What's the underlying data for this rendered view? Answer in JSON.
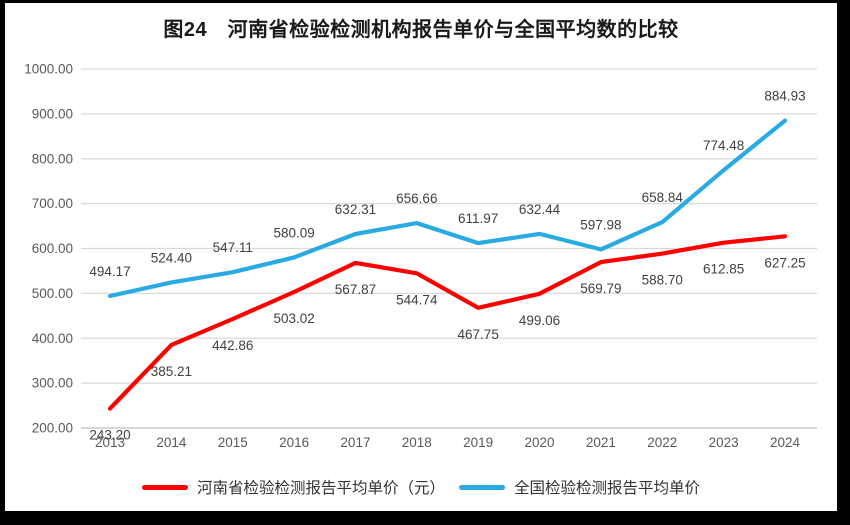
{
  "frame": {
    "background_color": "#000000",
    "canvas_color": "#ffffff"
  },
  "chart_data": {
    "type": "line",
    "title": "图24　河南省检验检测机构报告单价与全国平均数的比较",
    "categories": [
      "2013",
      "2014",
      "2015",
      "2016",
      "2017",
      "2018",
      "2019",
      "2020",
      "2021",
      "2022",
      "2023",
      "2024"
    ],
    "series": [
      {
        "name": "河南省检验检测报告平均单价（元）",
        "color": "#ff0000",
        "label_position": "below",
        "values": [
          243.2,
          385.21,
          442.86,
          503.02,
          567.87,
          544.74,
          467.75,
          499.06,
          569.79,
          588.7,
          612.85,
          627.25
        ]
      },
      {
        "name": "全国检验检测报告平均单价",
        "color": "#29abe2",
        "label_position": "above",
        "values": [
          494.17,
          524.4,
          547.11,
          580.09,
          632.31,
          656.66,
          611.97,
          632.44,
          597.98,
          658.84,
          774.48,
          884.93
        ]
      }
    ],
    "ylim": [
      200,
      1000
    ],
    "y_tick_step": 100,
    "y_tick_labels": [
      "200.00",
      "300.00",
      "400.00",
      "500.00",
      "600.00",
      "700.00",
      "800.00",
      "900.00",
      "1000.00"
    ],
    "xlabel": "",
    "ylabel": "",
    "grid": true,
    "data_labels": true,
    "legend_position": "bottom",
    "colors": {
      "gridline": "#d9d9d9",
      "axis_line": "#bfbfbf",
      "tick_text": "#595959",
      "data_label_text": "#404040",
      "title_text": "#1a1a1a"
    }
  }
}
